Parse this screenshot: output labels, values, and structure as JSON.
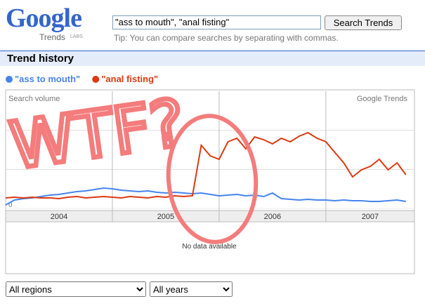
{
  "header": {
    "logo": "Google",
    "product": "Trends",
    "labs": "LABS",
    "query": "\"ass to mouth\", \"anal fisting\"",
    "button": "Search Trends",
    "tip": "Tip: You can compare searches by separating with commas."
  },
  "section_title": "Trend history",
  "chart_data": {
    "type": "line",
    "y_label": "Search volume",
    "watermark": "Google Trends",
    "annotation": "WTF?",
    "no_data": "No data available",
    "x": [
      2004,
      2004.083,
      2004.167,
      2004.25,
      2004.333,
      2004.417,
      2004.5,
      2004.583,
      2004.667,
      2004.75,
      2004.833,
      2004.917,
      2005,
      2005.083,
      2005.167,
      2005.25,
      2005.333,
      2005.417,
      2005.5,
      2005.583,
      2005.667,
      2005.75,
      2005.833,
      2005.917,
      2006,
      2006.083,
      2006.167,
      2006.25,
      2006.333,
      2006.417,
      2006.5,
      2006.583,
      2006.667,
      2006.75,
      2006.833,
      2006.917,
      2007,
      2007.083,
      2007.167,
      2007.25,
      2007.333,
      2007.417,
      2007.5,
      2007.583,
      2007.667,
      2007.75
    ],
    "series": [
      {
        "name": "\"ass to mouth\"",
        "color": "#4684ee",
        "values": [
          5,
          12,
          14,
          15,
          17,
          19,
          20,
          22,
          24,
          25,
          27,
          29,
          28,
          26,
          25,
          24,
          25,
          23,
          22,
          23,
          22,
          21,
          22,
          20,
          18,
          19,
          20,
          18,
          19,
          17,
          22,
          14,
          13,
          12,
          13,
          12,
          12,
          11,
          12,
          11,
          11,
          10,
          10,
          11,
          12,
          10
        ]
      },
      {
        "name": "\"anal fisting\"",
        "color": "#dc3912",
        "values": [
          15,
          16,
          15,
          16,
          15,
          15,
          14,
          16,
          17,
          15,
          16,
          17,
          16,
          15,
          17,
          16,
          15,
          17,
          16,
          18,
          17,
          18,
          90,
          75,
          70,
          95,
          100,
          85,
          102,
          98,
          92,
          100,
          95,
          103,
          108,
          100,
          95,
          80,
          65,
          45,
          55,
          60,
          70,
          55,
          65,
          48
        ]
      }
    ],
    "xlim": [
      2004,
      2007.83
    ],
    "xticks": [
      2004,
      2005,
      2006,
      2007
    ],
    "ylim": [
      0,
      167
    ],
    "yticks": [
      0
    ],
    "grid": true
  },
  "controls": {
    "region": "All regions",
    "years": "All years"
  }
}
